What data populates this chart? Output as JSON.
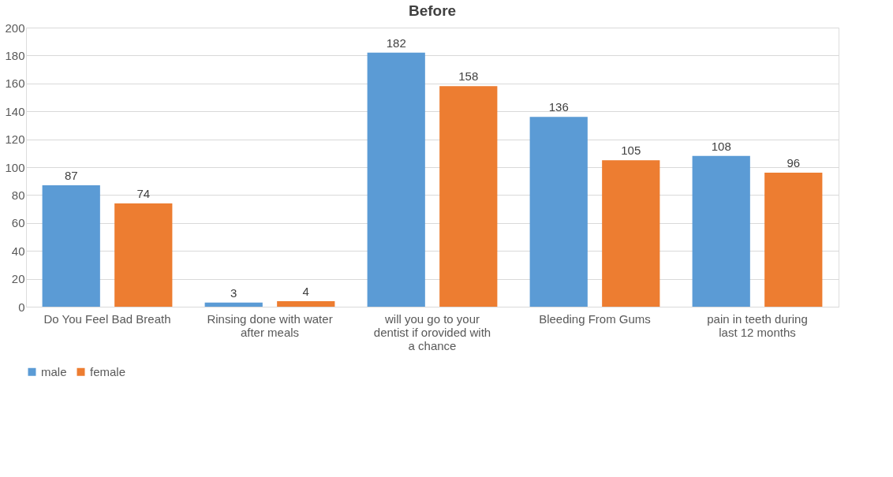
{
  "chart_data": {
    "type": "bar",
    "title": "Before",
    "categories": [
      "Do You Feel Bad Breath",
      "Rinsing done with water after meals",
      "will you go to your dentist if orovided with a chance",
      "Bleeding From Gums",
      "pain in teeth during last 12 months"
    ],
    "series": [
      {
        "name": "male",
        "color": "#5b9bd5",
        "values": [
          87,
          3,
          182,
          136,
          108
        ]
      },
      {
        "name": "female",
        "color": "#ed7d31",
        "values": [
          74,
          4,
          158,
          105,
          96
        ]
      }
    ],
    "ylim": [
      0,
      200
    ],
    "yticks": [
      0,
      20,
      40,
      60,
      80,
      100,
      120,
      140,
      160,
      180,
      200
    ],
    "grid": "y",
    "legend": "bottom",
    "data_labels": true
  }
}
